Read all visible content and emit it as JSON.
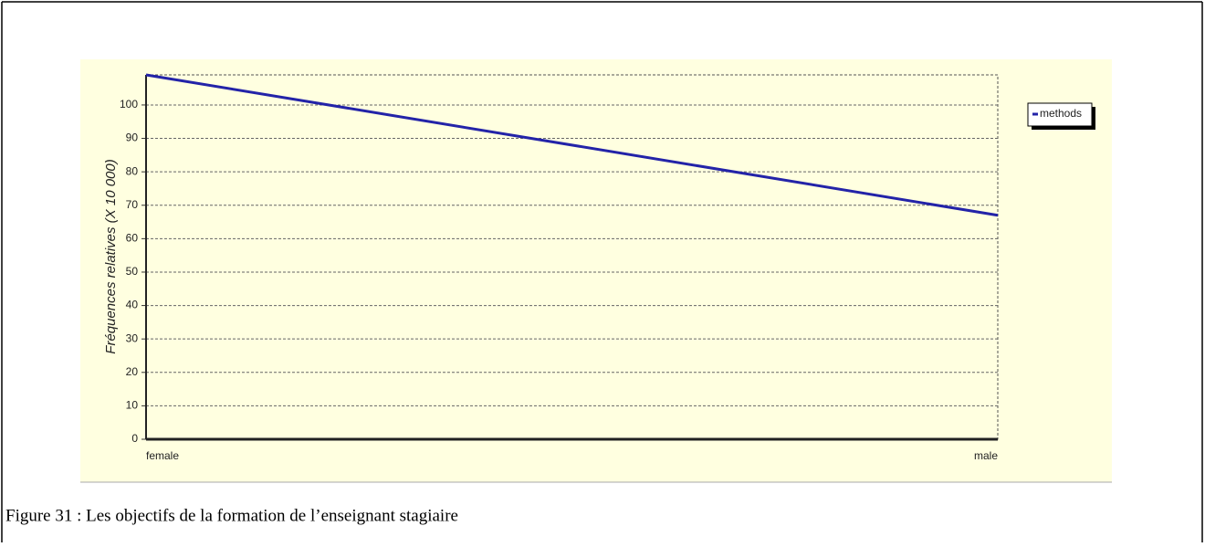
{
  "caption": "Figure 31 : Les objectifs de la formation de l’enseignant stagiaire",
  "chart_data": {
    "type": "line",
    "y_label": "Fréquences relatives (X 10 000)",
    "categories": [
      "female",
      "male"
    ],
    "series": [
      {
        "name": "methods",
        "color": "#2323a8",
        "values": [
          109,
          67
        ]
      }
    ],
    "ylim": [
      0,
      109
    ],
    "yticks": [
      0,
      10,
      20,
      30,
      40,
      50,
      60,
      70,
      80,
      90,
      100
    ],
    "grid": true,
    "legend": "right"
  }
}
